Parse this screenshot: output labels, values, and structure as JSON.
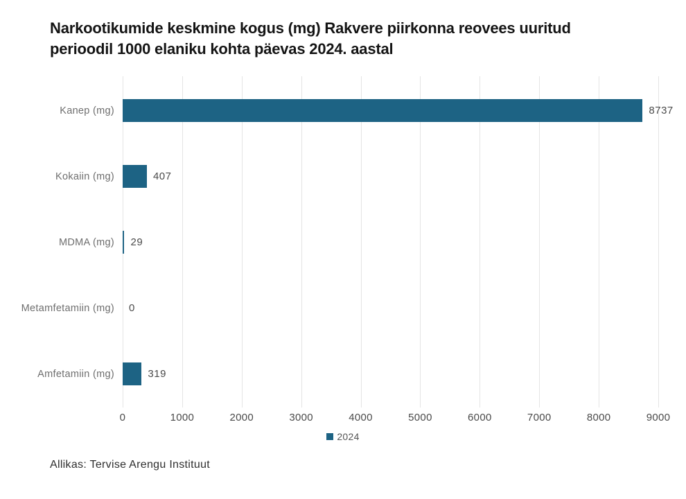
{
  "title_lines": [
    "Narkootikumide keskmine kogus (mg) Rakvere piirkonna reovees uuritud",
    "perioodil 1000 elaniku kohta päevas 2024. aastal"
  ],
  "source_note": "Allikas: Tervise Arengu Instituut",
  "legend": {
    "items": [
      {
        "label": "2024",
        "color": "#1d6384"
      }
    ],
    "position": "bottom-center"
  },
  "colors": {
    "bar": "#1d6384",
    "gridline": "#e4e4e4",
    "title_text": "#141414",
    "category_label_text": "#6e6e6e",
    "value_label_text": "#4a4a4a",
    "tick_label_text": "#4a4a4a",
    "source_text": "#2e2e2e",
    "background": "#ffffff"
  },
  "chart_data": {
    "type": "bar",
    "orientation": "horizontal",
    "title": "Narkootikumide keskmine kogus (mg) Rakvere piirkonna reovees uuritud perioodil 1000 elaniku kohta päevas 2024. aastal",
    "categories": [
      "Kanep (mg)",
      "Kokaiin (mg)",
      "MDMA (mg)",
      "Metamfetamiin (mg)",
      "Amfetamiin (mg)"
    ],
    "series": [
      {
        "name": "2024",
        "color": "#1d6384",
        "values": [
          8737,
          407,
          29,
          0,
          319
        ]
      }
    ],
    "value_labels": [
      8737,
      407,
      29,
      0,
      319
    ],
    "xlabel": "",
    "ylabel": "",
    "xlim": [
      0,
      9000
    ],
    "xticks": [
      0,
      1000,
      2000,
      3000,
      4000,
      5000,
      6000,
      7000,
      8000,
      9000
    ],
    "grid": true,
    "legend_position": "bottom"
  }
}
